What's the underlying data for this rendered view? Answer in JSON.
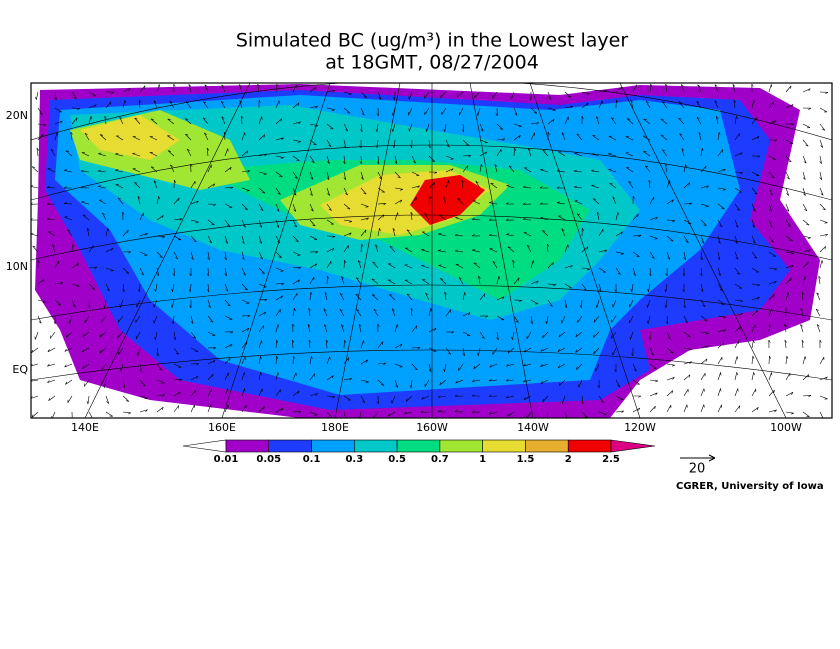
{
  "title": {
    "line1": "Simulated BC (ug/m³) in the Lowest layer",
    "line2": "at 18GMT, 08/27/2004"
  },
  "lat_labels": [
    "20N",
    "10N",
    "EQ"
  ],
  "lon_labels": [
    "140E",
    "160E",
    "180E",
    "160W",
    "140W",
    "120W",
    "100W"
  ],
  "colorbar": {
    "labels": [
      "0.01",
      "0.05",
      "0.1",
      "0.3",
      "0.5",
      "0.7",
      "1",
      "1.5",
      "2",
      "2.5"
    ],
    "colors": [
      "#ffffff",
      "#a000c8",
      "#1e3cff",
      "#00a0ff",
      "#00c8c8",
      "#00dc82",
      "#a0e632",
      "#e6dc32",
      "#e6af2d",
      "#f00000",
      "#dc0082"
    ]
  },
  "vector_scale": "20",
  "credit": "CGRER, University of Iowa"
}
